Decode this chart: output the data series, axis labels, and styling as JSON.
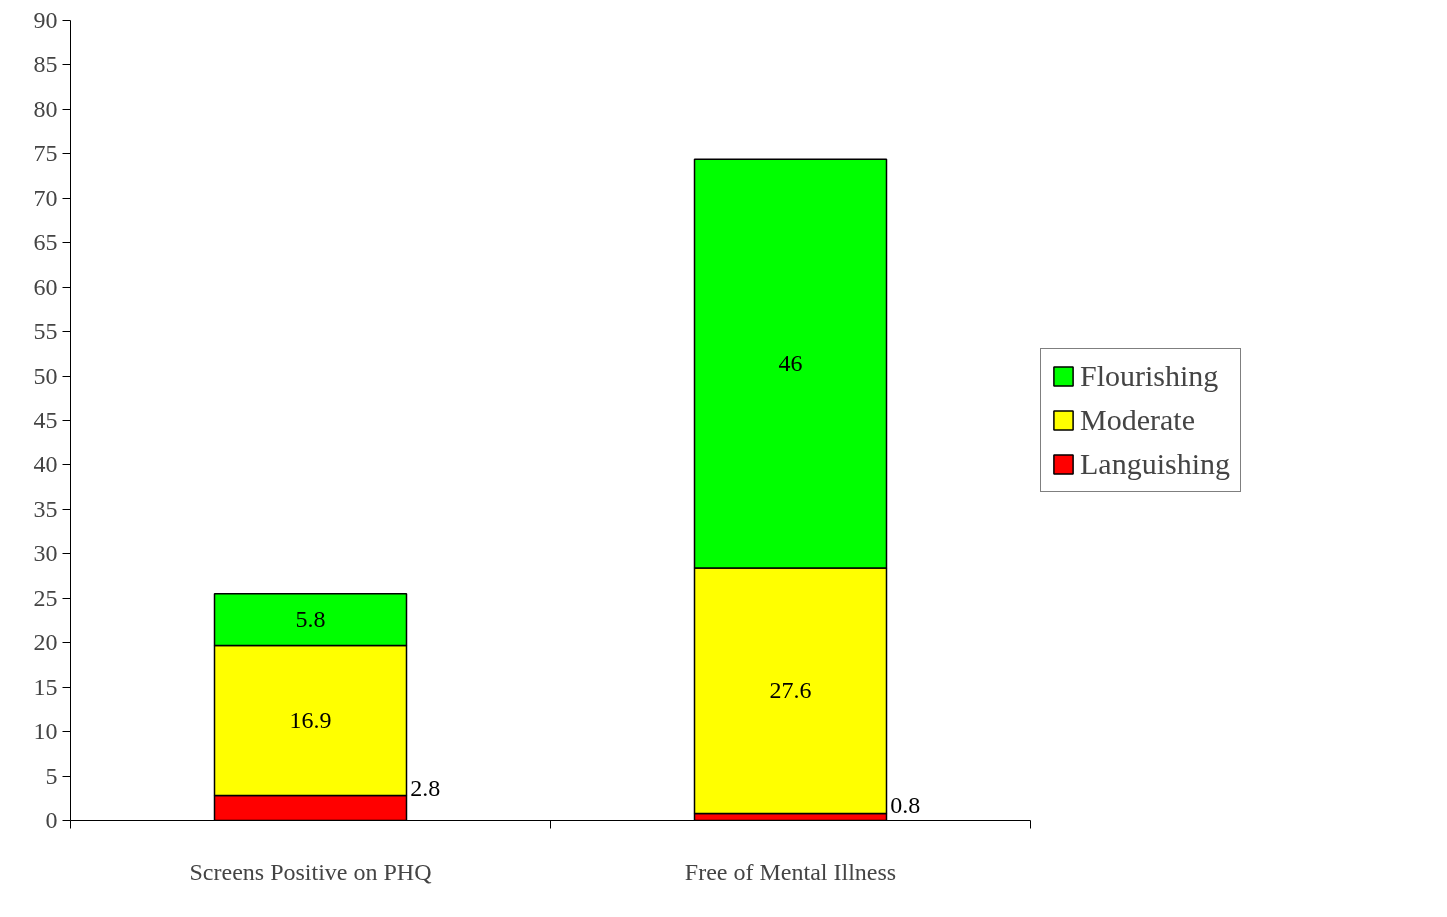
{
  "chart_data": {
    "type": "bar",
    "stacked": true,
    "categories": [
      "Screens Positive on PHQ",
      "Free of Mental Illness"
    ],
    "series": [
      {
        "name": "Languishing",
        "color": "#ff0000",
        "values": [
          2.8,
          0.8
        ]
      },
      {
        "name": "Moderate",
        "color": "#ffff00",
        "values": [
          16.9,
          27.6
        ]
      },
      {
        "name": "Flourishing",
        "color": "#00ff00",
        "values": [
          5.8,
          46
        ]
      }
    ],
    "ylim": [
      0,
      90
    ],
    "yticks": [
      0,
      5,
      10,
      15,
      20,
      25,
      30,
      35,
      40,
      45,
      50,
      55,
      60,
      65,
      70,
      75,
      80,
      85,
      90
    ],
    "grid": false,
    "legend": "right",
    "data_labels": true
  }
}
